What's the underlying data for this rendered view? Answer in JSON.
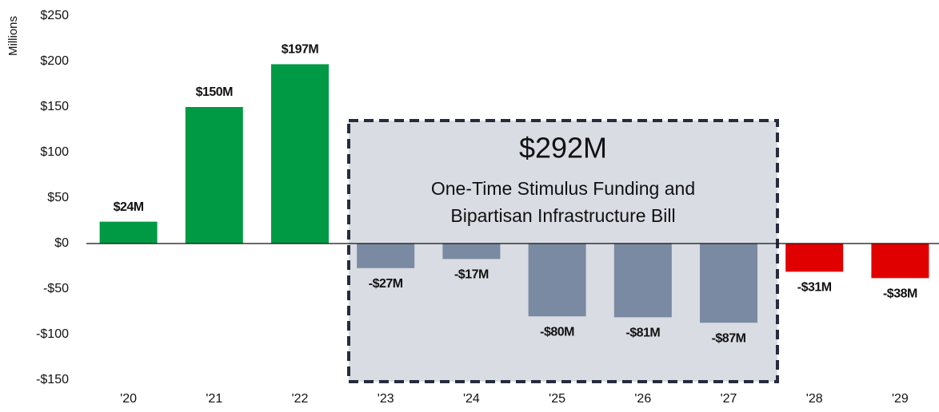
{
  "chart_data": {
    "type": "bar",
    "y_label": "Millions",
    "categories": [
      "'20",
      "'21",
      "'22",
      "'23",
      "'24",
      "'25",
      "'26",
      "'27",
      "'28",
      "'29"
    ],
    "values": [
      24,
      150,
      197,
      -27,
      -17,
      -80,
      -81,
      -87,
      -31,
      -38
    ],
    "value_labels": [
      "$24M",
      "$150M",
      "$197M",
      "-$27M",
      "-$17M",
      "-$80M",
      "-$81M",
      "-$87M",
      "-$31M",
      "-$38M"
    ],
    "colors": [
      "#009a44",
      "#009a44",
      "#009a44",
      "#7a8aa2",
      "#7a8aa2",
      "#7a8aa2",
      "#7a8aa2",
      "#7a8aa2",
      "#e00000",
      "#e00000"
    ],
    "ylim": [
      -150,
      250
    ],
    "yticks": [
      {
        "value": 250,
        "label": "$250"
      },
      {
        "value": 200,
        "label": "$200"
      },
      {
        "value": 150,
        "label": "$150"
      },
      {
        "value": 100,
        "label": "$100"
      },
      {
        "value": 50,
        "label": "$50"
      },
      {
        "value": 0,
        "label": "$0"
      },
      {
        "value": -50,
        "label": "-$50"
      },
      {
        "value": -100,
        "label": "-$100"
      },
      {
        "value": -150,
        "label": "-$150"
      }
    ],
    "grid": false,
    "annotations": [
      "$292M",
      "One-Time Stimulus Funding and",
      "Bipartisan Infrastructure Bill"
    ]
  }
}
